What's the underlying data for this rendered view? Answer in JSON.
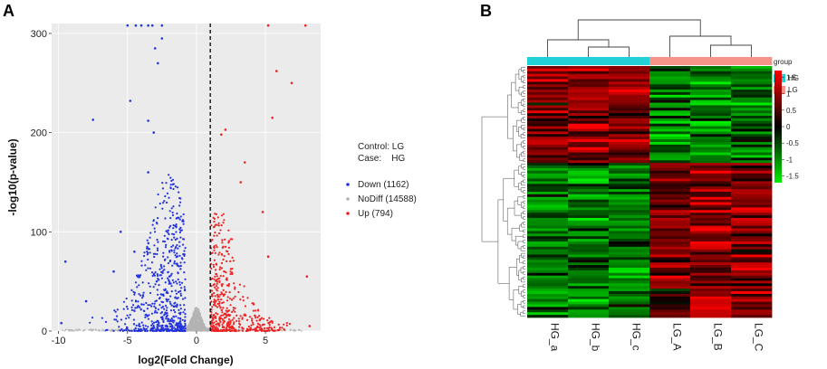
{
  "chart_data": [
    {
      "type": "scatter",
      "panel_label": "A",
      "title": "",
      "xlabel": "log2(Fold Change)",
      "ylabel": "-log10(p-value)",
      "xlim": [
        -10.5,
        9
      ],
      "ylim": [
        0,
        310
      ],
      "x_ticks": [
        -10,
        -5,
        0,
        5
      ],
      "y_ticks": [
        0,
        100,
        200,
        300
      ],
      "threshold_x": 1,
      "legend": {
        "control_line": "Control: LG",
        "case_line": "Case:    HG",
        "entries": [
          {
            "label": "Down (1162)",
            "color": "#2233dd"
          },
          {
            "label": "NoDiff (14588)",
            "color": "#b3b3b3"
          },
          {
            "label": "Up (794)",
            "color": "#ee2222"
          }
        ]
      },
      "series": [
        {
          "name": "Down",
          "count": 1162,
          "color": "#2233dd",
          "highlight_points": [
            [
              -7.5,
              213
            ],
            [
              -4.8,
              232
            ],
            [
              -3.5,
              212
            ],
            [
              -3.1,
              200
            ],
            [
              -2.5,
              295
            ],
            [
              -2.8,
              270
            ],
            [
              -3.0,
              285
            ],
            [
              -3.5,
              160
            ],
            [
              -9.5,
              70
            ],
            [
              -9.8,
              8
            ],
            [
              -6,
              60
            ],
            [
              -5.5,
              100
            ],
            [
              -4.5,
              80
            ],
            [
              -8,
              30
            ]
          ]
        },
        {
          "name": "NoDiff",
          "count": 14588,
          "color": "#b3b3b3"
        },
        {
          "name": "Up",
          "count": 794,
          "color": "#ee2222",
          "highlight_points": [
            [
              5.8,
              262
            ],
            [
              6.9,
              250
            ],
            [
              5.5,
              215
            ],
            [
              2.1,
              203
            ],
            [
              1.8,
              198
            ],
            [
              3.5,
              170
            ],
            [
              3.2,
              150
            ],
            [
              4.8,
              120
            ],
            [
              8,
              55
            ],
            [
              8.2,
              5
            ],
            [
              5.2,
              75
            ]
          ]
        }
      ]
    },
    {
      "type": "heatmap",
      "panel_label": "B",
      "columns": [
        "HG_a",
        "HG_b",
        "HG_c",
        "LG_A",
        "LG_B",
        "LG_C"
      ],
      "groups": [
        "HG",
        "HG",
        "HG",
        "LG",
        "LG",
        "LG"
      ],
      "legend_title": "group",
      "legend_groups": [
        {
          "label": "HG",
          "color": "#22d1d8"
        },
        {
          "label": "LG",
          "color": "#f5958a"
        }
      ],
      "colorbar_ticks": [
        "1.5",
        "1",
        "0.5",
        "0",
        "-0.5",
        "-1",
        "-1.5"
      ],
      "colorbar_range": [
        -1.7,
        1.7
      ],
      "colors": {
        "high": "#ff0000",
        "mid": "#000000",
        "low": "#00ee00"
      },
      "up_in_HG_fraction": 0.39
    }
  ]
}
